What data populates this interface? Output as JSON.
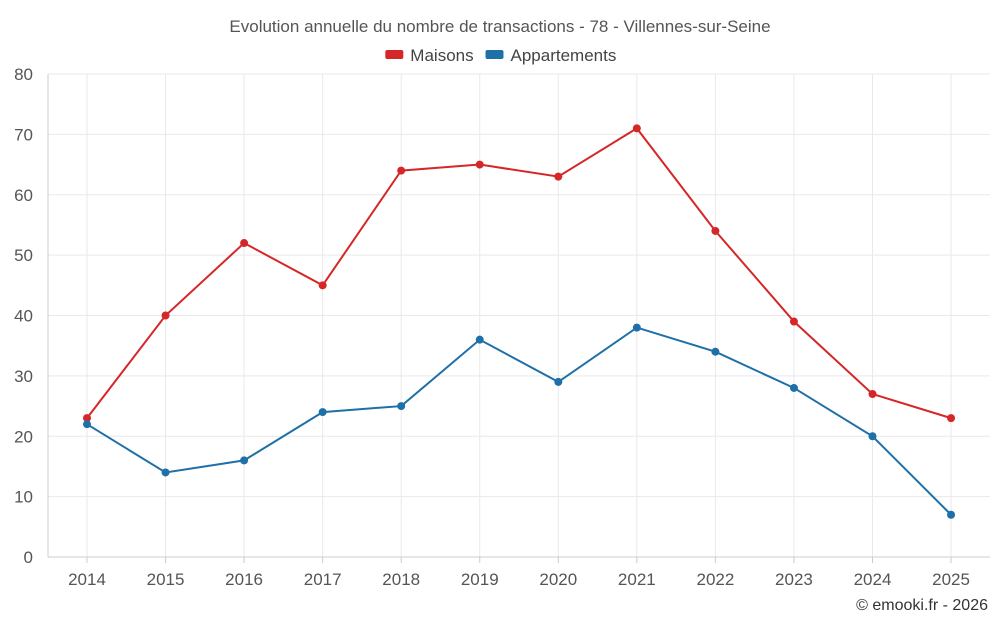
{
  "chart_data": {
    "type": "line",
    "title": "Evolution annuelle du nombre de transactions - 78 - Villennes-sur-Seine",
    "categories": [
      "2014",
      "2015",
      "2016",
      "2017",
      "2018",
      "2019",
      "2020",
      "2021",
      "2022",
      "2023",
      "2024",
      "2025"
    ],
    "series": [
      {
        "name": "Maisons",
        "color": "#d62728",
        "values": [
          23,
          40,
          52,
          45,
          64,
          65,
          63,
          71,
          54,
          39,
          27,
          23
        ]
      },
      {
        "name": "Appartements",
        "color": "#1f6fa8",
        "values": [
          22,
          14,
          16,
          24,
          25,
          36,
          29,
          38,
          34,
          28,
          20,
          7
        ]
      }
    ],
    "ylim": [
      0,
      80
    ],
    "yticks": [
      0,
      10,
      20,
      30,
      40,
      50,
      60,
      70,
      80
    ],
    "xlabel": "",
    "ylabel": "",
    "grid": true,
    "legend": "top-center"
  },
  "credit": "© emooki.fr - 2026"
}
